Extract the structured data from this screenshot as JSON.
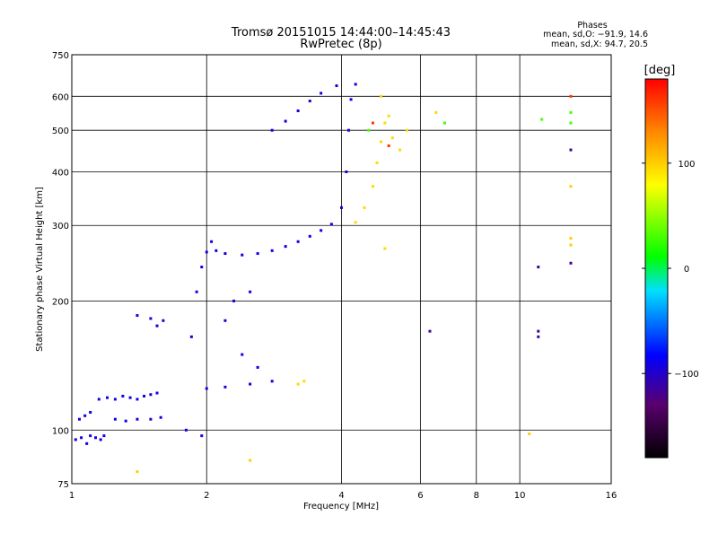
{
  "chart_data": {
    "type": "scatter",
    "title": "Tromsø 20151015 14:44:00–14:45:43",
    "subtitle": "RwPretec (8p)",
    "phases": {
      "heading": "Phases",
      "line_o": "mean, sd,O: −91.9, 14.6",
      "line_x": "mean, sd,X:  94.7, 20.5"
    },
    "xlabel": "Frequency [MHz]",
    "ylabel": "Stationary phase Virtual Height [km]",
    "x_scale": "log",
    "y_scale": "log",
    "xlim": [
      1,
      16
    ],
    "ylim": [
      75,
      750
    ],
    "grid": true,
    "x_ticks": [
      1,
      2,
      4,
      6,
      8,
      10,
      16
    ],
    "x_tick_labels": [
      "1",
      "2",
      "4",
      "6",
      "8",
      "10",
      "16"
    ],
    "y_ticks": [
      75,
      100,
      200,
      300,
      400,
      500,
      600,
      750
    ],
    "y_tick_labels": [
      "75",
      "100",
      "200",
      "300",
      "400",
      "500",
      "600",
      "750"
    ],
    "colorbar": {
      "label": "[deg]",
      "range": [
        -180,
        180
      ],
      "ticks": [
        100,
        0,
        -100
      ],
      "tick_labels": [
        "100",
        "0",
        "−100"
      ]
    },
    "series": [
      {
        "name": "",
        "color_phase_deg": -92,
        "points": [
          [
            1.02,
            95
          ],
          [
            1.05,
            96
          ],
          [
            1.08,
            93
          ],
          [
            1.1,
            97
          ],
          [
            1.13,
            96
          ],
          [
            1.16,
            95
          ],
          [
            1.18,
            97
          ],
          [
            1.04,
            106
          ],
          [
            1.07,
            108
          ],
          [
            1.1,
            110
          ],
          [
            1.15,
            118
          ],
          [
            1.2,
            119
          ],
          [
            1.25,
            118
          ],
          [
            1.3,
            120
          ],
          [
            1.35,
            119
          ],
          [
            1.4,
            118
          ],
          [
            1.45,
            120
          ],
          [
            1.5,
            121
          ],
          [
            1.55,
            122
          ],
          [
            1.25,
            106
          ],
          [
            1.32,
            105
          ],
          [
            1.4,
            106
          ],
          [
            1.5,
            106
          ],
          [
            1.58,
            107
          ],
          [
            1.4,
            185
          ],
          [
            1.5,
            182
          ],
          [
            1.55,
            175
          ],
          [
            1.6,
            180
          ],
          [
            1.85,
            165
          ],
          [
            1.9,
            210
          ],
          [
            1.95,
            240
          ],
          [
            2.0,
            260
          ],
          [
            2.05,
            275
          ],
          [
            2.1,
            262
          ],
          [
            2.2,
            258
          ],
          [
            2.4,
            256
          ],
          [
            2.6,
            258
          ],
          [
            2.8,
            262
          ],
          [
            3.0,
            268
          ],
          [
            3.2,
            275
          ],
          [
            3.4,
            283
          ],
          [
            3.6,
            292
          ],
          [
            3.8,
            302
          ],
          [
            4.0,
            330
          ],
          [
            4.1,
            400
          ],
          [
            4.15,
            500
          ],
          [
            4.2,
            590
          ],
          [
            4.3,
            640
          ],
          [
            2.8,
            500
          ],
          [
            3.0,
            525
          ],
          [
            3.2,
            555
          ],
          [
            3.4,
            585
          ],
          [
            3.6,
            610
          ],
          [
            3.9,
            635
          ],
          [
            2.0,
            125
          ],
          [
            2.2,
            126
          ],
          [
            2.5,
            128
          ],
          [
            2.8,
            130
          ],
          [
            2.6,
            140
          ],
          [
            2.4,
            150
          ],
          [
            2.2,
            180
          ],
          [
            2.3,
            200
          ],
          [
            2.5,
            210
          ],
          [
            1.8,
            100
          ],
          [
            1.95,
            97
          ]
        ]
      },
      {
        "name": "",
        "color_phase_deg": 95,
        "points": [
          [
            4.3,
            305
          ],
          [
            4.5,
            330
          ],
          [
            4.7,
            370
          ],
          [
            4.8,
            420
          ],
          [
            4.9,
            470
          ],
          [
            5.0,
            520
          ],
          [
            5.1,
            540
          ],
          [
            5.2,
            480
          ],
          [
            5.4,
            450
          ],
          [
            5.6,
            500
          ],
          [
            3.2,
            128
          ],
          [
            3.3,
            130
          ],
          [
            4.9,
            600
          ],
          [
            6.5,
            550
          ],
          [
            5.0,
            265
          ]
        ]
      },
      {
        "name": "",
        "color_phase_deg": 30,
        "points": [
          [
            6.8,
            520
          ],
          [
            11.2,
            530
          ],
          [
            13.0,
            550
          ],
          [
            13.0,
            520
          ],
          [
            4.6,
            500
          ]
        ]
      },
      {
        "name": "",
        "color_phase_deg": 160,
        "points": [
          [
            13.0,
            600
          ],
          [
            4.7,
            520
          ],
          [
            5.1,
            460
          ]
        ]
      },
      {
        "name": "",
        "color_phase_deg": 100,
        "points": [
          [
            13.0,
            370
          ],
          [
            13.0,
            280
          ],
          [
            13.0,
            270
          ],
          [
            10.5,
            98
          ],
          [
            2.5,
            85
          ],
          [
            1.4,
            80
          ]
        ]
      },
      {
        "name": "",
        "color_phase_deg": -115,
        "points": [
          [
            13.0,
            450
          ],
          [
            13.0,
            245
          ],
          [
            11.0,
            240
          ],
          [
            11.0,
            170
          ],
          [
            11.0,
            165
          ],
          [
            6.3,
            170
          ]
        ]
      }
    ]
  }
}
